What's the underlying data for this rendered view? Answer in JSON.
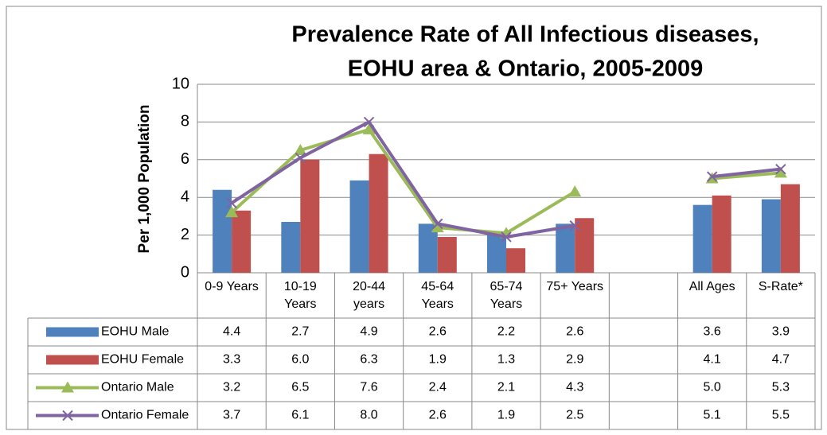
{
  "chart_data": {
    "type": "bar",
    "title_lines": [
      "Prevalence Rate of All Infectious diseases,",
      "EOHU area & Ontario, 2005-2009"
    ],
    "y_label": "Per 1,000 Population",
    "categories": [
      "0-9 Years",
      "10-19 Years",
      "20-44 years",
      "45-64 Years",
      "65-74 Years",
      "75+ Years",
      null,
      "All Ages",
      "S-Rate*"
    ],
    "series": [
      {
        "name": "EOHU Male",
        "type": "bar",
        "color": "#4f81bd",
        "values": [
          4.4,
          2.7,
          4.9,
          2.6,
          2.2,
          2.6,
          null,
          3.6,
          3.9
        ],
        "value_labels": [
          "4.4",
          "2.7",
          "4.9",
          "2.6",
          "2.2",
          "2.6",
          null,
          "3.6",
          "3.9"
        ]
      },
      {
        "name": "EOHU Female",
        "type": "bar",
        "color": "#c0504d",
        "values": [
          3.3,
          6.0,
          6.3,
          1.9,
          1.3,
          2.9,
          null,
          4.1,
          4.7
        ],
        "value_labels": [
          "3.3",
          "6.0",
          "6.3",
          "1.9",
          "1.3",
          "2.9",
          null,
          "4.1",
          "4.7"
        ]
      },
      {
        "name": "Ontario Male",
        "type": "line",
        "marker": "triangle",
        "color": "#9bbb59",
        "values": [
          3.2,
          6.5,
          7.6,
          2.4,
          2.1,
          4.3,
          null,
          5.0,
          5.3
        ],
        "value_labels": [
          "3.2",
          "6.5",
          "7.6",
          "2.4",
          "2.1",
          "4.3",
          null,
          "5.0",
          "5.3"
        ]
      },
      {
        "name": "Ontario Female",
        "type": "line",
        "marker": "x",
        "color": "#8064a2",
        "values": [
          3.7,
          6.1,
          8.0,
          2.6,
          1.9,
          2.5,
          null,
          5.1,
          5.5
        ],
        "value_labels": [
          "3.7",
          "6.1",
          "8.0",
          "2.6",
          "1.9",
          "2.5",
          null,
          "5.1",
          "5.5"
        ]
      }
    ],
    "ylim": [
      0,
      10
    ],
    "yticks": [
      0,
      2,
      4,
      6,
      8,
      10
    ],
    "grid": true
  }
}
